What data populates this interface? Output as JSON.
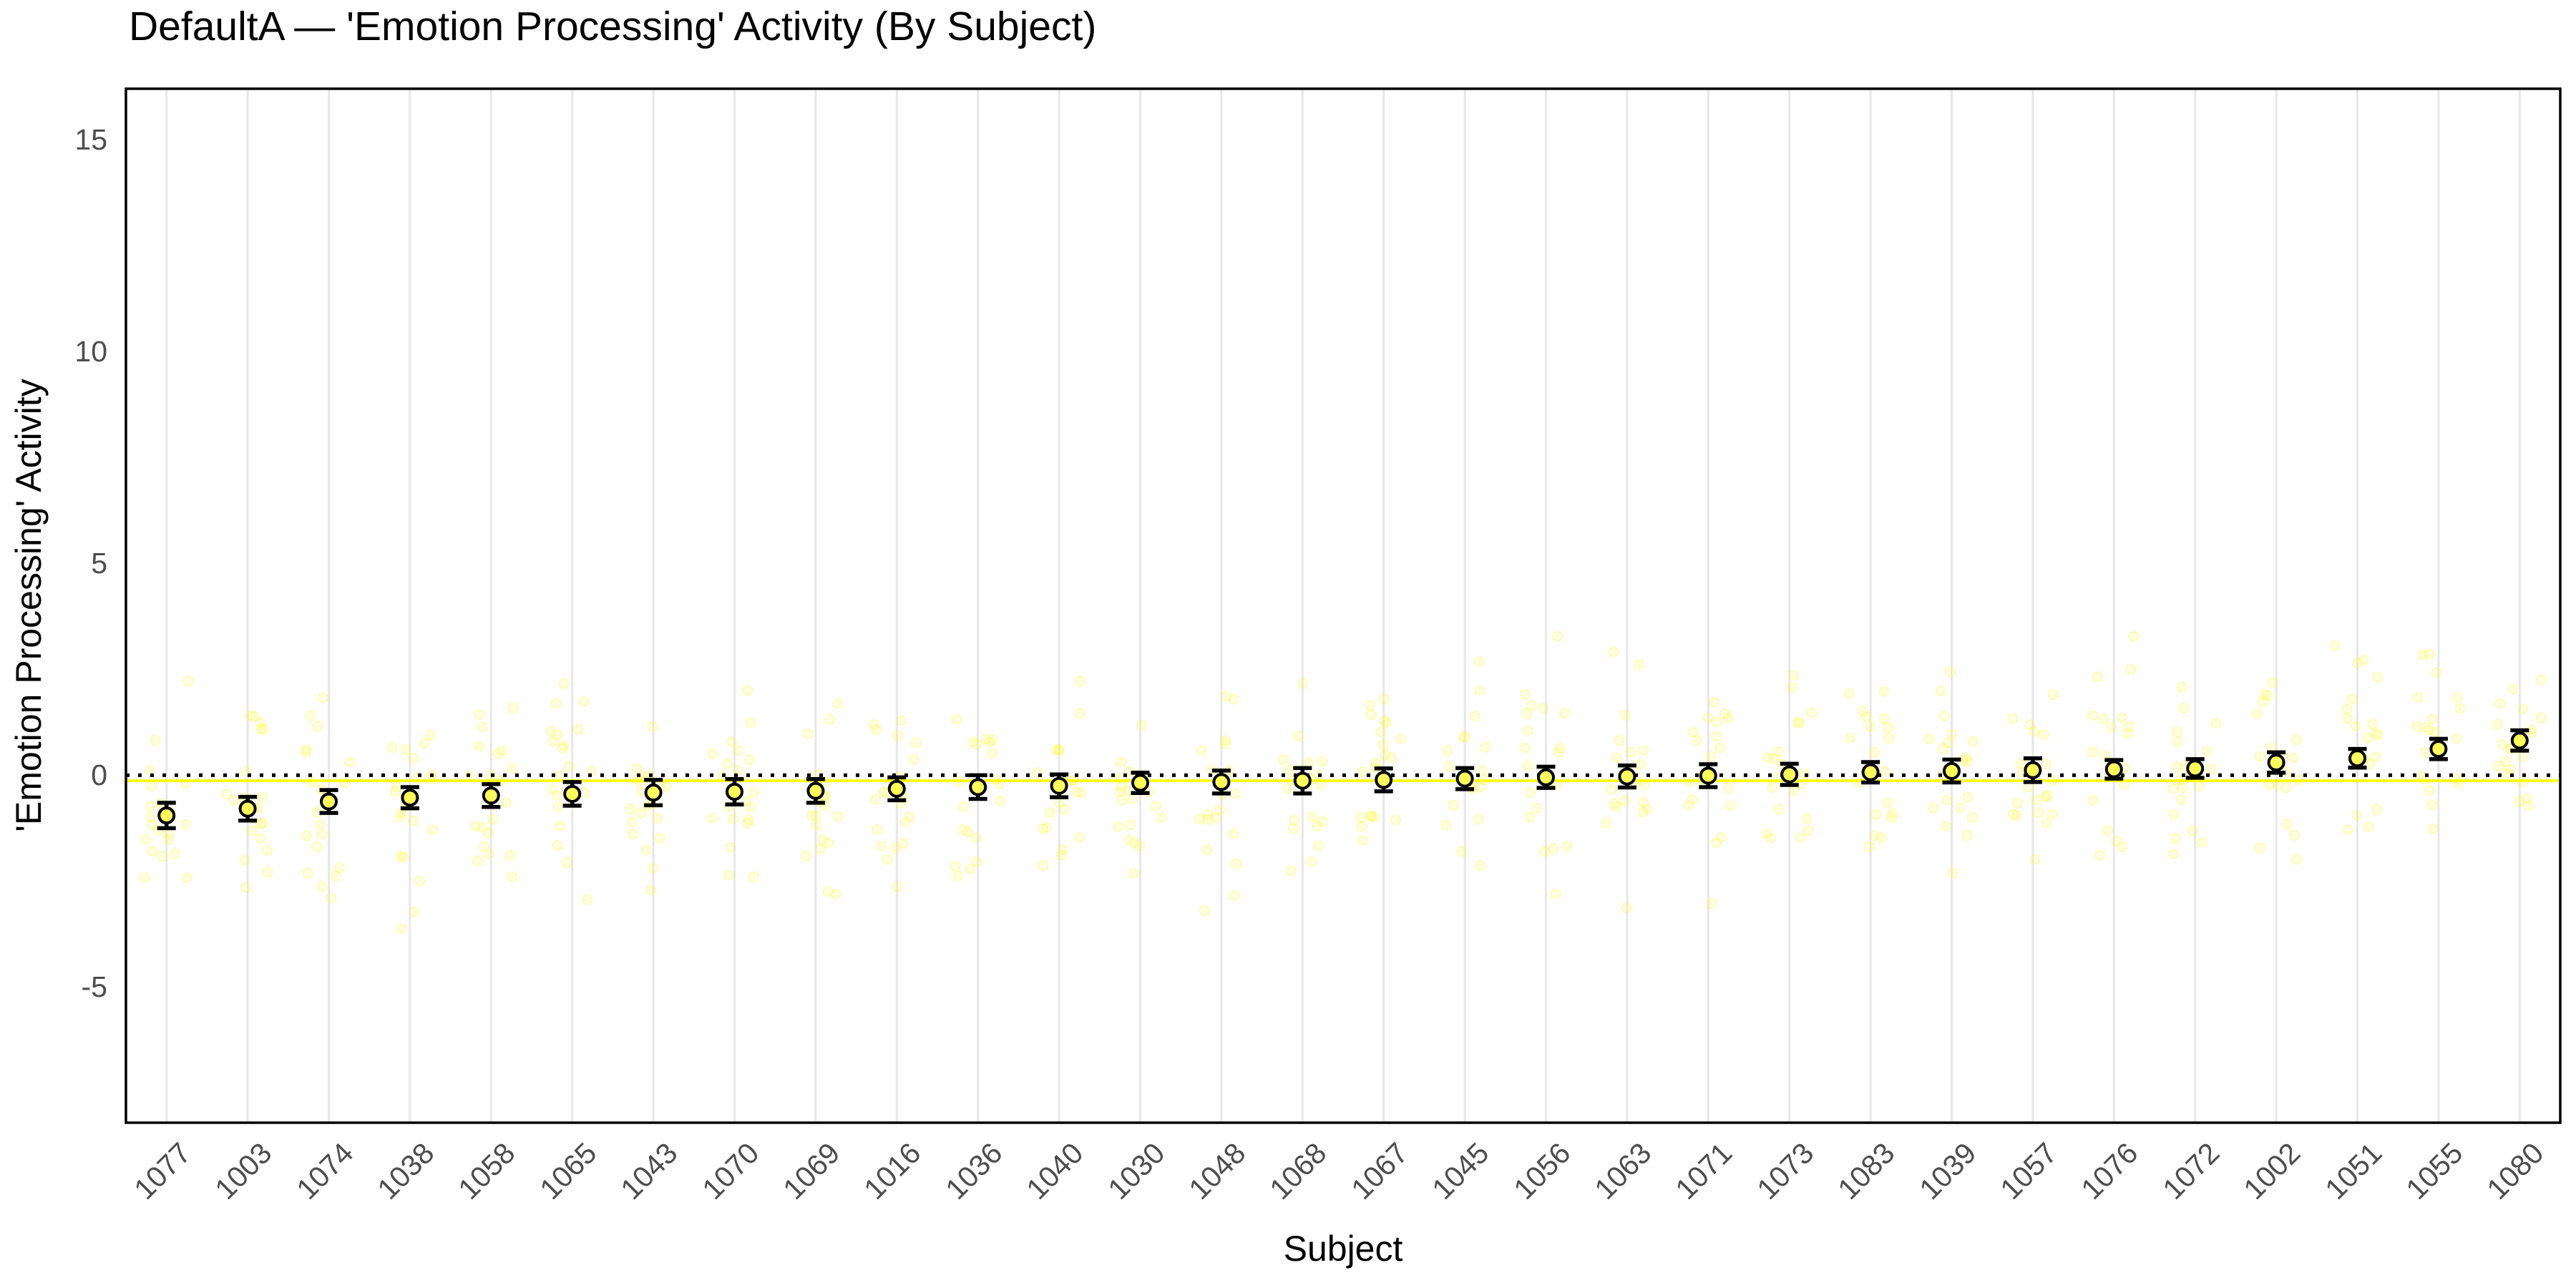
{
  "colors": {
    "background": "#FFFFFF",
    "marker_fill": "#FFFF5A",
    "marker_stroke": "#000000",
    "jitter_fill": "rgba(255,255,0,0.12)",
    "jitter_stroke": "rgba(255,245,80,0.35)",
    "grand_mean_line": "#FFFF00",
    "zero_line": "#000000",
    "gridline": "#E7E7E7",
    "axis_text": "#4D4D4D",
    "panel_border": "#000000",
    "title_text": "#000000"
  },
  "chart_data": {
    "type": "scatter",
    "title": "DefaultA — 'Emotion Processing' Activity (By Subject)",
    "xlabel": "Subject",
    "ylabel": "'Emotion Processing' Activity",
    "categories": [
      "1077",
      "1003",
      "1074",
      "1038",
      "1058",
      "1065",
      "1043",
      "1070",
      "1069",
      "1016",
      "1036",
      "1040",
      "1030",
      "1048",
      "1068",
      "1067",
      "1045",
      "1056",
      "1063",
      "1071",
      "1073",
      "1083",
      "1039",
      "1057",
      "1076",
      "1072",
      "1002",
      "1051",
      "1055",
      "1080"
    ],
    "series": [
      {
        "name": "subject_mean",
        "values": [
          -0.95,
          -0.79,
          -0.62,
          -0.53,
          -0.48,
          -0.44,
          -0.41,
          -0.39,
          -0.37,
          -0.32,
          -0.28,
          -0.25,
          -0.18,
          -0.16,
          -0.13,
          -0.11,
          -0.08,
          -0.05,
          -0.03,
          -0.01,
          0.02,
          0.07,
          0.1,
          0.12,
          0.14,
          0.16,
          0.3,
          0.4,
          0.62,
          0.82
        ]
      },
      {
        "name": "sem",
        "values": [
          0.3,
          0.28,
          0.27,
          0.25,
          0.27,
          0.28,
          0.3,
          0.3,
          0.28,
          0.27,
          0.28,
          0.27,
          0.24,
          0.27,
          0.3,
          0.27,
          0.25,
          0.25,
          0.26,
          0.27,
          0.25,
          0.24,
          0.27,
          0.28,
          0.22,
          0.22,
          0.24,
          0.22,
          0.24,
          0.24
        ]
      }
    ],
    "y_ticks": [
      15,
      10,
      5,
      0,
      -5
    ],
    "ylim": [
      -8.2,
      16.2
    ],
    "reference_lines": [
      {
        "name": "zero_line",
        "y": 0,
        "style": "dotted"
      },
      {
        "name": "grand_mean_line",
        "y": -0.13,
        "style": "solid"
      }
    ],
    "grid": "vertical-only",
    "legend": "none",
    "jitter": {
      "points_per_subject": 20,
      "sd": 1.15,
      "x_spread": 64
    }
  }
}
